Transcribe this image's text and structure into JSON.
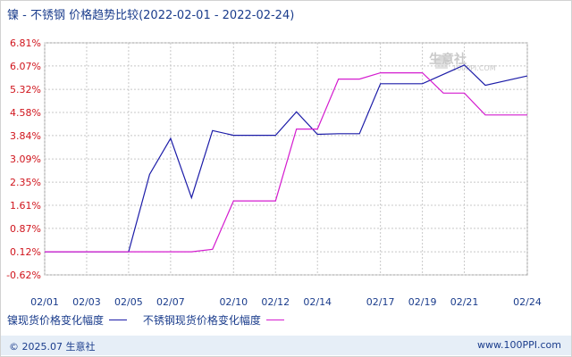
{
  "title": "镍 - 不锈钢 价格趋势比较(2022-02-01 - 2022-02-24)",
  "watermark": {
    "text": "生意社",
    "sub": "100PPI.COM"
  },
  "footer": {
    "copyright": "© 2025.07 生意社",
    "site": "www.100PPI.com"
  },
  "colors": {
    "nickel": "#1c1ca8",
    "stainless": "#d41ccf",
    "grid": "#c8c8c8",
    "axis_text": "#1a3c8c",
    "tick_text": "#d0141c"
  },
  "chart_data": {
    "type": "line",
    "x_tick_labels": [
      "02/01",
      "02/03",
      "02/05",
      "02/07",
      "02/10",
      "02/12",
      "02/14",
      "02/17",
      "02/19",
      "02/21",
      "02/24"
    ],
    "y_tick_labels": [
      "6.81%",
      "6.07%",
      "5.32%",
      "4.58%",
      "3.84%",
      "3.09%",
      "2.35%",
      "1.61%",
      "0.87%",
      "0.12%",
      "-0.62%"
    ],
    "ylim": [
      -0.62,
      6.81
    ],
    "grid": true,
    "legend_position": "bottom-left",
    "series": [
      {
        "name": "镍现货价格变化幅度",
        "color": "#1c1ca8",
        "points": [
          [
            "02/01",
            0.12
          ],
          [
            "02/02",
            0.12
          ],
          [
            "02/03",
            0.12
          ],
          [
            "02/04",
            0.12
          ],
          [
            "02/05",
            0.12
          ],
          [
            "02/06",
            2.6
          ],
          [
            "02/07",
            3.75
          ],
          [
            "02/08",
            1.85
          ],
          [
            "02/09",
            4.0
          ],
          [
            "02/10",
            3.85
          ],
          [
            "02/11",
            3.85
          ],
          [
            "02/12",
            3.85
          ],
          [
            "02/13",
            4.6
          ],
          [
            "02/14",
            3.88
          ],
          [
            "02/15",
            3.9
          ],
          [
            "02/16",
            3.9
          ],
          [
            "02/17",
            5.5
          ],
          [
            "02/18",
            5.5
          ],
          [
            "02/19",
            5.5
          ],
          [
            "02/20",
            5.8
          ],
          [
            "02/21",
            6.1
          ],
          [
            "02/22",
            5.45
          ],
          [
            "02/24",
            5.75
          ]
        ]
      },
      {
        "name": "不锈钢现货价格变化幅度",
        "color": "#d41ccf",
        "points": [
          [
            "02/01",
            0.12
          ],
          [
            "02/02",
            0.12
          ],
          [
            "02/03",
            0.12
          ],
          [
            "02/04",
            0.12
          ],
          [
            "02/05",
            0.12
          ],
          [
            "02/06",
            0.12
          ],
          [
            "02/07",
            0.12
          ],
          [
            "02/08",
            0.12
          ],
          [
            "02/09",
            0.2
          ],
          [
            "02/10",
            1.75
          ],
          [
            "02/11",
            1.75
          ],
          [
            "02/12",
            1.75
          ],
          [
            "02/13",
            4.05
          ],
          [
            "02/14",
            4.05
          ],
          [
            "02/15",
            5.65
          ],
          [
            "02/16",
            5.65
          ],
          [
            "02/17",
            5.85
          ],
          [
            "02/18",
            5.85
          ],
          [
            "02/19",
            5.85
          ],
          [
            "02/20",
            5.2
          ],
          [
            "02/21",
            5.2
          ],
          [
            "02/22",
            4.5
          ],
          [
            "02/24",
            4.5
          ]
        ]
      }
    ]
  }
}
